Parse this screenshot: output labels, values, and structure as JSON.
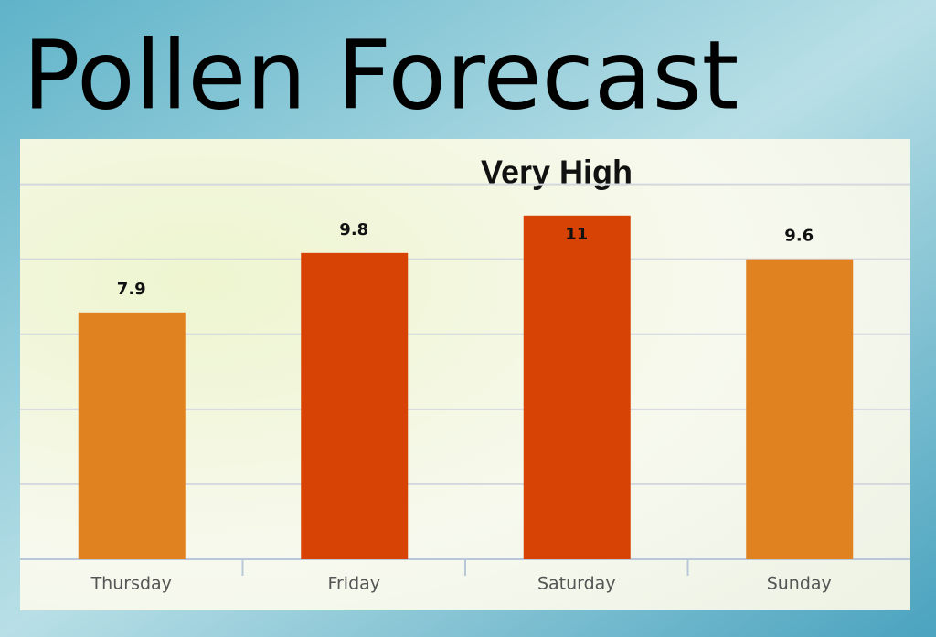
{
  "chart_data": {
    "type": "bar",
    "title": "Pollen Forecast",
    "annotation": "Very High",
    "categories": [
      "Thursday",
      "Friday",
      "Saturday",
      "Sunday"
    ],
    "values": [
      7.9,
      9.8,
      11,
      9.6
    ],
    "colors": [
      "#e0821f",
      "#d64304",
      "#d64304",
      "#e0821f"
    ],
    "ylim": [
      0,
      13.45
    ],
    "yticks": [
      0,
      2.4,
      4.8,
      7.2,
      9.6,
      12
    ],
    "grid": true
  }
}
